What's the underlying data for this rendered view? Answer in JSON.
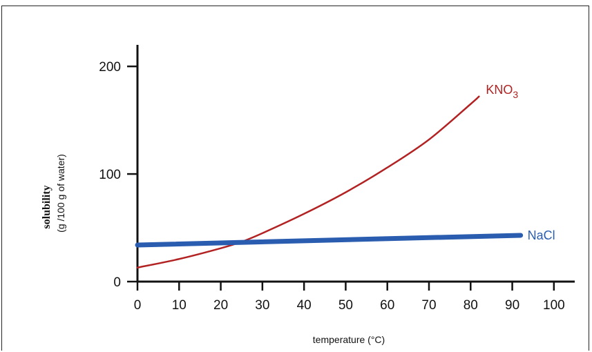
{
  "chart_data": {
    "type": "line",
    "xlabel": "temperature (°C)",
    "ylabel": "solubility",
    "ylabel_sub": "(g /100 g of water)",
    "xlim": [
      0,
      105
    ],
    "ylim": [
      0,
      220
    ],
    "x_ticks": [
      0,
      10,
      20,
      30,
      40,
      50,
      60,
      70,
      80,
      90,
      100
    ],
    "y_ticks": [
      0,
      100,
      200
    ],
    "grid": false,
    "legend": "inline labels at line ends",
    "series": [
      {
        "name": "KNO3",
        "label_main": "KNO",
        "label_sub": "3",
        "color": "#b22222",
        "x": [
          0,
          10,
          20,
          25,
          30,
          40,
          50,
          60,
          70,
          80,
          82
        ],
        "y": [
          13,
          21,
          31,
          37,
          45,
          63,
          83,
          106,
          132,
          165,
          172
        ]
      },
      {
        "name": "NaCl",
        "label_main": "NaCl",
        "color": "#2a5db0",
        "x": [
          0,
          92
        ],
        "y": [
          34,
          43
        ]
      }
    ]
  }
}
